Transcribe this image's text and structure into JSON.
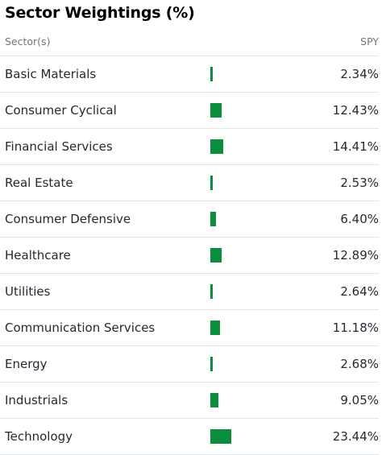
{
  "title": "Sector Weightings (%)",
  "header": {
    "sector_label": "Sector(s)",
    "fund_label": "SPY"
  },
  "colors": {
    "bar": "#0b8e3c",
    "divider": "#e0e4e9",
    "muted_text": "#6e7780"
  },
  "sectors": [
    {
      "name": "Basic Materials",
      "value_text": "2.34%",
      "weight": 2.34
    },
    {
      "name": "Consumer Cyclical",
      "value_text": "12.43%",
      "weight": 12.43
    },
    {
      "name": "Financial Services",
      "value_text": "14.41%",
      "weight": 14.41
    },
    {
      "name": "Real Estate",
      "value_text": "2.53%",
      "weight": 2.53
    },
    {
      "name": "Consumer Defensive",
      "value_text": "6.40%",
      "weight": 6.4
    },
    {
      "name": "Healthcare",
      "value_text": "12.89%",
      "weight": 12.89
    },
    {
      "name": "Utilities",
      "value_text": "2.64%",
      "weight": 2.64
    },
    {
      "name": "Communication Services",
      "value_text": "11.18%",
      "weight": 11.18
    },
    {
      "name": "Energy",
      "value_text": "2.68%",
      "weight": 2.68
    },
    {
      "name": "Industrials",
      "value_text": "9.05%",
      "weight": 9.05
    },
    {
      "name": "Technology",
      "value_text": "23.44%",
      "weight": 23.44
    }
  ]
}
